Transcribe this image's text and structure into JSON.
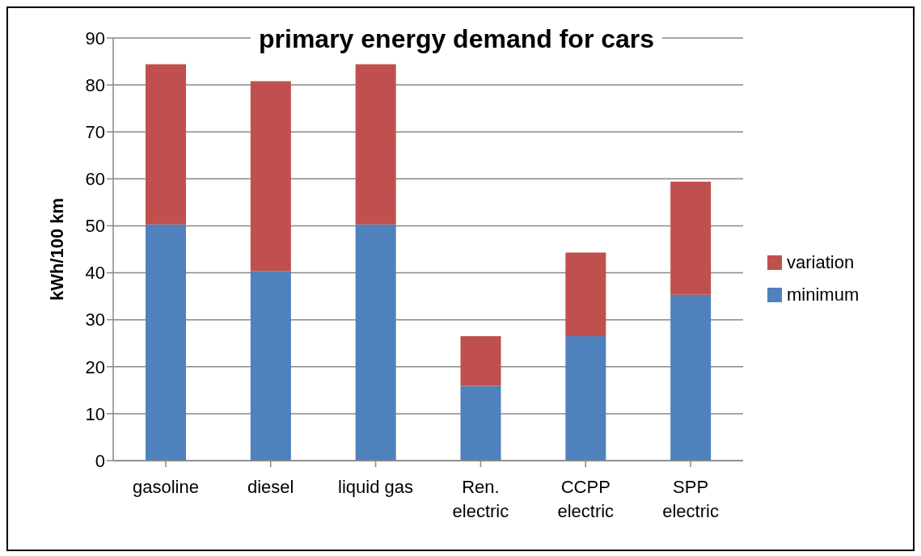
{
  "chart_data": {
    "type": "bar",
    "title": "primary energy demand for cars",
    "ylabel": "kWh/100 km",
    "categories": [
      "gasoline",
      "diesel",
      "liquid gas",
      "Ren. electric",
      "CCPP electric",
      "SPP electric"
    ],
    "stacked": true,
    "series": [
      {
        "name": "minimum",
        "color": "#4f81bd",
        "values": [
          50.3,
          40.4,
          50.3,
          15.9,
          26.5,
          35.3
        ]
      },
      {
        "name": "variation",
        "color": "#c0504d",
        "values": [
          34.1,
          40.4,
          34.1,
          10.6,
          17.8,
          24.1
        ]
      }
    ],
    "ylim": [
      0,
      90
    ],
    "yticks": [
      0,
      10,
      20,
      30,
      40,
      50,
      60,
      70,
      80,
      90
    ],
    "grid": "y",
    "legend": "right"
  }
}
